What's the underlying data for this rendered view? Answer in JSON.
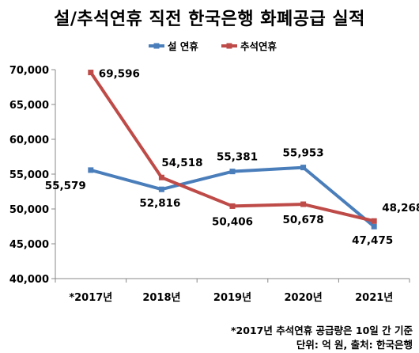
{
  "chart_data": {
    "type": "line",
    "title": "설/추석연휴 직전 한국은행 화폐공급 실적",
    "categories": [
      "*2017년",
      "2018년",
      "2019년",
      "2020년",
      "2021년"
    ],
    "ylim": [
      40000,
      70000
    ],
    "yticks": [
      "40,000",
      "45,000",
      "50,000",
      "55,000",
      "60,000",
      "65,000",
      "70,000"
    ],
    "ytick_values": [
      40000,
      45000,
      50000,
      55000,
      60000,
      65000,
      70000
    ],
    "grid": false,
    "legend_position": "top",
    "series": [
      {
        "name": "설 연휴",
        "color": "#4A7EBB",
        "values": [
          55579,
          52816,
          55381,
          55953,
          47475
        ],
        "labels": [
          "55,579",
          "52,816",
          "55,381",
          "55,953",
          "47,475"
        ]
      },
      {
        "name": "추석연휴",
        "color": "#BE4B48",
        "values": [
          69596,
          54518,
          50406,
          50678,
          48268
        ],
        "labels": [
          "69,596",
          "54,518",
          "50,406",
          "50,678",
          "48,268"
        ]
      }
    ]
  },
  "notes": {
    "line1": "*2017년 추석연휴 공급량은 10일 간 기준",
    "line2": "단위: 억 원, 출처: 한국은행"
  }
}
